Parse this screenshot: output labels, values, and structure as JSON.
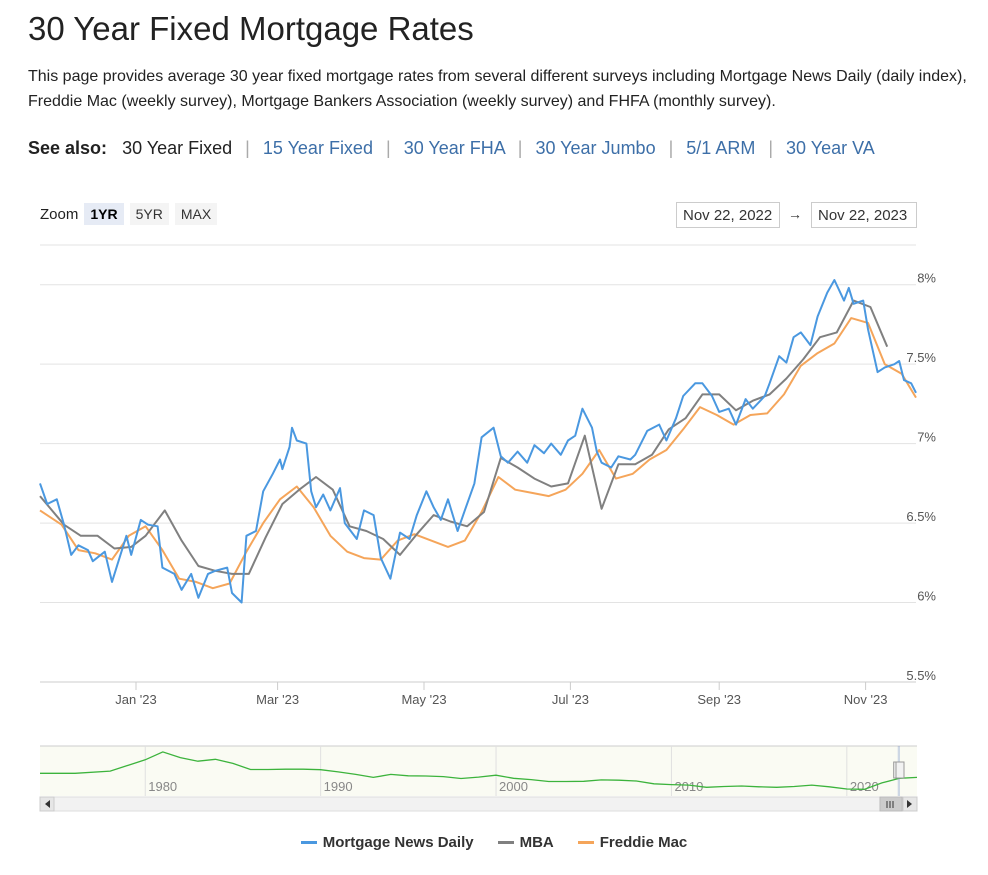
{
  "page": {
    "title": "30 Year Fixed Mortgage Rates",
    "description": "This page provides average 30 year fixed mortgage rates from several different surveys including Mortgage News Daily (daily index), Freddie Mac (weekly survey), Mortgage Bankers Association (weekly survey) and FHFA (monthly survey).",
    "see_also_label": "See also:",
    "see_also": [
      {
        "label": "30 Year Fixed",
        "current": true
      },
      {
        "label": "15 Year Fixed",
        "current": false
      },
      {
        "label": "30 Year FHA",
        "current": false
      },
      {
        "label": "30 Year Jumbo",
        "current": false
      },
      {
        "label": "5/1 ARM",
        "current": false
      },
      {
        "label": "30 Year VA",
        "current": false
      }
    ]
  },
  "controls": {
    "zoom_label": "Zoom",
    "zoom_options": [
      "1YR",
      "5YR",
      "MAX"
    ],
    "zoom_selected": "1YR",
    "range_from": "Nov 22, 2022",
    "range_arrow": "→",
    "range_to": "Nov 22, 2023"
  },
  "colors": {
    "mnd": "#4a98e0",
    "mba": "#808080",
    "freddie": "#f5a55a",
    "navigator": "#3cb33c",
    "grid": "#e3e3e3"
  },
  "chart_data": {
    "type": "line",
    "title": "",
    "xlabel": "",
    "ylabel": "",
    "x_range": [
      "2022-11-22",
      "2023-11-22"
    ],
    "ylim": [
      5.5,
      8.25
    ],
    "y_ticks": [
      5.5,
      6,
      6.5,
      7,
      7.5,
      8
    ],
    "y_tick_labels": [
      "5.5%",
      "6%",
      "6.5%",
      "7%",
      "7.5%",
      "8%"
    ],
    "x_ticks": [
      {
        "date": "2023-01-01",
        "label": "Jan '23"
      },
      {
        "date": "2023-03-01",
        "label": "Mar '23"
      },
      {
        "date": "2023-05-01",
        "label": "May '23"
      },
      {
        "date": "2023-07-01",
        "label": "Jul '23"
      },
      {
        "date": "2023-09-01",
        "label": "Sep '23"
      },
      {
        "date": "2023-11-01",
        "label": "Nov '23"
      }
    ],
    "legend_position": "bottom-center",
    "grid": true,
    "series": [
      {
        "name": "Mortgage News Daily",
        "points": [
          [
            "2022-11-22",
            6.75
          ],
          [
            "2022-11-25",
            6.62
          ],
          [
            "2022-11-29",
            6.65
          ],
          [
            "2022-12-02",
            6.49
          ],
          [
            "2022-12-05",
            6.3
          ],
          [
            "2022-12-08",
            6.36
          ],
          [
            "2022-12-12",
            6.33
          ],
          [
            "2022-12-14",
            6.26
          ],
          [
            "2022-12-19",
            6.32
          ],
          [
            "2022-12-22",
            6.13
          ],
          [
            "2022-12-28",
            6.42
          ],
          [
            "2022-12-30",
            6.3
          ],
          [
            "2023-01-03",
            6.52
          ],
          [
            "2023-01-06",
            6.49
          ],
          [
            "2023-01-10",
            6.48
          ],
          [
            "2023-01-12",
            6.22
          ],
          [
            "2023-01-17",
            6.18
          ],
          [
            "2023-01-20",
            6.08
          ],
          [
            "2023-01-24",
            6.18
          ],
          [
            "2023-01-27",
            6.03
          ],
          [
            "2023-01-31",
            6.18
          ],
          [
            "2023-02-03",
            6.2
          ],
          [
            "2023-02-08",
            6.22
          ],
          [
            "2023-02-10",
            6.06
          ],
          [
            "2023-02-14",
            6.0
          ],
          [
            "2023-02-16",
            6.42
          ],
          [
            "2023-02-20",
            6.45
          ],
          [
            "2023-02-23",
            6.7
          ],
          [
            "2023-02-27",
            6.81
          ],
          [
            "2023-03-02",
            6.9
          ],
          [
            "2023-03-03",
            6.84
          ],
          [
            "2023-03-06",
            6.98
          ],
          [
            "2023-03-07",
            7.1
          ],
          [
            "2023-03-09",
            7.02
          ],
          [
            "2023-03-13",
            7.0
          ],
          [
            "2023-03-15",
            6.7
          ],
          [
            "2023-03-17",
            6.6
          ],
          [
            "2023-03-20",
            6.68
          ],
          [
            "2023-03-23",
            6.58
          ],
          [
            "2023-03-27",
            6.72
          ],
          [
            "2023-03-29",
            6.5
          ],
          [
            "2023-04-03",
            6.4
          ],
          [
            "2023-04-06",
            6.58
          ],
          [
            "2023-04-10",
            6.55
          ],
          [
            "2023-04-13",
            6.28
          ],
          [
            "2023-04-17",
            6.15
          ],
          [
            "2023-04-21",
            6.44
          ],
          [
            "2023-04-25",
            6.4
          ],
          [
            "2023-04-28",
            6.55
          ],
          [
            "2023-05-02",
            6.7
          ],
          [
            "2023-05-05",
            6.6
          ],
          [
            "2023-05-08",
            6.52
          ],
          [
            "2023-05-11",
            6.65
          ],
          [
            "2023-05-15",
            6.45
          ],
          [
            "2023-05-18",
            6.58
          ],
          [
            "2023-05-22",
            6.75
          ],
          [
            "2023-05-25",
            7.04
          ],
          [
            "2023-05-30",
            7.1
          ],
          [
            "2023-06-02",
            6.92
          ],
          [
            "2023-06-05",
            6.88
          ],
          [
            "2023-06-09",
            6.95
          ],
          [
            "2023-06-13",
            6.88
          ],
          [
            "2023-06-16",
            6.99
          ],
          [
            "2023-06-20",
            6.94
          ],
          [
            "2023-06-23",
            7.0
          ],
          [
            "2023-06-27",
            6.93
          ],
          [
            "2023-06-30",
            7.02
          ],
          [
            "2023-07-03",
            7.05
          ],
          [
            "2023-07-06",
            7.22
          ],
          [
            "2023-07-10",
            7.1
          ],
          [
            "2023-07-12",
            6.95
          ],
          [
            "2023-07-14",
            6.88
          ],
          [
            "2023-07-18",
            6.85
          ],
          [
            "2023-07-21",
            6.92
          ],
          [
            "2023-07-26",
            6.9
          ],
          [
            "2023-07-28",
            6.93
          ],
          [
            "2023-08-02",
            7.08
          ],
          [
            "2023-08-07",
            7.12
          ],
          [
            "2023-08-10",
            7.02
          ],
          [
            "2023-08-14",
            7.16
          ],
          [
            "2023-08-17",
            7.3
          ],
          [
            "2023-08-22",
            7.38
          ],
          [
            "2023-08-25",
            7.38
          ],
          [
            "2023-08-29",
            7.3
          ],
          [
            "2023-09-01",
            7.2
          ],
          [
            "2023-09-05",
            7.22
          ],
          [
            "2023-09-08",
            7.12
          ],
          [
            "2023-09-12",
            7.28
          ],
          [
            "2023-09-15",
            7.22
          ],
          [
            "2023-09-20",
            7.3
          ],
          [
            "2023-09-22",
            7.38
          ],
          [
            "2023-09-26",
            7.55
          ],
          [
            "2023-09-29",
            7.51
          ],
          [
            "2023-10-02",
            7.67
          ],
          [
            "2023-10-05",
            7.7
          ],
          [
            "2023-10-09",
            7.62
          ],
          [
            "2023-10-12",
            7.8
          ],
          [
            "2023-10-16",
            7.95
          ],
          [
            "2023-10-19",
            8.03
          ],
          [
            "2023-10-23",
            7.9
          ],
          [
            "2023-10-25",
            7.98
          ],
          [
            "2023-10-27",
            7.88
          ],
          [
            "2023-10-31",
            7.9
          ],
          [
            "2023-11-02",
            7.72
          ],
          [
            "2023-11-06",
            7.45
          ],
          [
            "2023-11-09",
            7.48
          ],
          [
            "2023-11-13",
            7.5
          ],
          [
            "2023-11-15",
            7.52
          ],
          [
            "2023-11-17",
            7.4
          ],
          [
            "2023-11-20",
            7.38
          ],
          [
            "2023-11-22",
            7.32
          ]
        ]
      },
      {
        "name": "MBA",
        "points": [
          [
            "2022-11-22",
            6.67
          ],
          [
            "2022-12-02",
            6.49
          ],
          [
            "2022-12-09",
            6.42
          ],
          [
            "2022-12-16",
            6.42
          ],
          [
            "2022-12-23",
            6.34
          ],
          [
            "2022-12-30",
            6.35
          ],
          [
            "2023-01-05",
            6.42
          ],
          [
            "2023-01-13",
            6.58
          ],
          [
            "2023-01-20",
            6.39
          ],
          [
            "2023-01-27",
            6.23
          ],
          [
            "2023-02-03",
            6.2
          ],
          [
            "2023-02-10",
            6.18
          ],
          [
            "2023-02-17",
            6.18
          ],
          [
            "2023-02-24",
            6.41
          ],
          [
            "2023-03-03",
            6.62
          ],
          [
            "2023-03-10",
            6.71
          ],
          [
            "2023-03-17",
            6.79
          ],
          [
            "2023-03-24",
            6.71
          ],
          [
            "2023-03-31",
            6.48
          ],
          [
            "2023-04-07",
            6.45
          ],
          [
            "2023-04-14",
            6.4
          ],
          [
            "2023-04-21",
            6.3
          ],
          [
            "2023-04-28",
            6.43
          ],
          [
            "2023-05-05",
            6.55
          ],
          [
            "2023-05-12",
            6.51
          ],
          [
            "2023-05-19",
            6.48
          ],
          [
            "2023-05-26",
            6.57
          ],
          [
            "2023-06-02",
            6.91
          ],
          [
            "2023-06-09",
            6.85
          ],
          [
            "2023-06-16",
            6.78
          ],
          [
            "2023-06-23",
            6.73
          ],
          [
            "2023-06-30",
            6.75
          ],
          [
            "2023-07-07",
            7.05
          ],
          [
            "2023-07-14",
            6.59
          ],
          [
            "2023-07-21",
            6.87
          ],
          [
            "2023-07-28",
            6.87
          ],
          [
            "2023-08-04",
            6.93
          ],
          [
            "2023-08-11",
            7.09
          ],
          [
            "2023-08-18",
            7.16
          ],
          [
            "2023-08-25",
            7.31
          ],
          [
            "2023-09-01",
            7.31
          ],
          [
            "2023-09-08",
            7.21
          ],
          [
            "2023-09-15",
            7.27
          ],
          [
            "2023-09-22",
            7.31
          ],
          [
            "2023-09-29",
            7.41
          ],
          [
            "2023-10-06",
            7.53
          ],
          [
            "2023-10-13",
            7.67
          ],
          [
            "2023-10-20",
            7.7
          ],
          [
            "2023-10-27",
            7.9
          ],
          [
            "2023-11-03",
            7.86
          ],
          [
            "2023-11-10",
            7.61
          ]
        ]
      },
      {
        "name": "Freddie Mac",
        "points": [
          [
            "2022-11-22",
            6.58
          ],
          [
            "2022-12-01",
            6.49
          ],
          [
            "2022-12-08",
            6.33
          ],
          [
            "2022-12-15",
            6.31
          ],
          [
            "2022-12-22",
            6.27
          ],
          [
            "2022-12-29",
            6.42
          ],
          [
            "2023-01-05",
            6.48
          ],
          [
            "2023-01-12",
            6.33
          ],
          [
            "2023-01-19",
            6.15
          ],
          [
            "2023-01-26",
            6.13
          ],
          [
            "2023-02-02",
            6.09
          ],
          [
            "2023-02-09",
            6.12
          ],
          [
            "2023-02-16",
            6.32
          ],
          [
            "2023-02-23",
            6.5
          ],
          [
            "2023-03-02",
            6.65
          ],
          [
            "2023-03-09",
            6.73
          ],
          [
            "2023-03-16",
            6.6
          ],
          [
            "2023-03-23",
            6.42
          ],
          [
            "2023-03-30",
            6.32
          ],
          [
            "2023-04-06",
            6.28
          ],
          [
            "2023-04-13",
            6.27
          ],
          [
            "2023-04-20",
            6.39
          ],
          [
            "2023-04-27",
            6.43
          ],
          [
            "2023-05-04",
            6.39
          ],
          [
            "2023-05-11",
            6.35
          ],
          [
            "2023-05-18",
            6.39
          ],
          [
            "2023-05-25",
            6.57
          ],
          [
            "2023-06-01",
            6.79
          ],
          [
            "2023-06-08",
            6.71
          ],
          [
            "2023-06-15",
            6.69
          ],
          [
            "2023-06-22",
            6.67
          ],
          [
            "2023-06-29",
            6.71
          ],
          [
            "2023-07-06",
            6.81
          ],
          [
            "2023-07-13",
            6.96
          ],
          [
            "2023-07-20",
            6.78
          ],
          [
            "2023-07-27",
            6.81
          ],
          [
            "2023-08-03",
            6.9
          ],
          [
            "2023-08-10",
            6.96
          ],
          [
            "2023-08-17",
            7.09
          ],
          [
            "2023-08-24",
            7.23
          ],
          [
            "2023-08-31",
            7.18
          ],
          [
            "2023-09-07",
            7.12
          ],
          [
            "2023-09-14",
            7.18
          ],
          [
            "2023-09-21",
            7.19
          ],
          [
            "2023-09-28",
            7.31
          ],
          [
            "2023-10-05",
            7.49
          ],
          [
            "2023-10-12",
            7.57
          ],
          [
            "2023-10-19",
            7.63
          ],
          [
            "2023-10-26",
            7.79
          ],
          [
            "2023-11-02",
            7.76
          ],
          [
            "2023-11-09",
            7.5
          ],
          [
            "2023-11-16",
            7.44
          ],
          [
            "2023-11-22",
            7.29
          ]
        ]
      }
    ],
    "navigator": {
      "x_range": [
        1974,
        2024
      ],
      "x_ticks": [
        1980,
        1990,
        2000,
        2010,
        2020
      ],
      "points": [
        [
          1974,
          8.8
        ],
        [
          1976,
          8.8
        ],
        [
          1978,
          9.6
        ],
        [
          1980,
          13.7
        ],
        [
          1981,
          16.6
        ],
        [
          1982,
          14.5
        ],
        [
          1983,
          13.2
        ],
        [
          1984,
          13.9
        ],
        [
          1985,
          12.4
        ],
        [
          1986,
          10.2
        ],
        [
          1987,
          10.2
        ],
        [
          1988,
          10.3
        ],
        [
          1989,
          10.3
        ],
        [
          1990,
          10.1
        ],
        [
          1991,
          9.3
        ],
        [
          1992,
          8.4
        ],
        [
          1993,
          7.3
        ],
        [
          1994,
          8.4
        ],
        [
          1995,
          7.9
        ],
        [
          1996,
          7.8
        ],
        [
          1997,
          7.6
        ],
        [
          1998,
          6.9
        ],
        [
          1999,
          7.4
        ],
        [
          2000,
          8.1
        ],
        [
          2001,
          7.0
        ],
        [
          2002,
          6.5
        ],
        [
          2003,
          5.8
        ],
        [
          2004,
          5.8
        ],
        [
          2005,
          5.9
        ],
        [
          2006,
          6.4
        ],
        [
          2007,
          6.3
        ],
        [
          2008,
          6.0
        ],
        [
          2009,
          5.0
        ],
        [
          2010,
          4.7
        ],
        [
          2011,
          4.5
        ],
        [
          2012,
          3.7
        ],
        [
          2013,
          4.0
        ],
        [
          2014,
          4.2
        ],
        [
          2015,
          3.9
        ],
        [
          2016,
          3.7
        ],
        [
          2017,
          4.0
        ],
        [
          2018,
          4.5
        ],
        [
          2019,
          3.9
        ],
        [
          2020,
          3.1
        ],
        [
          2021,
          3.0
        ],
        [
          2022,
          5.3
        ],
        [
          2023,
          7.0
        ],
        [
          2024,
          7.3
        ]
      ]
    }
  },
  "legend": [
    {
      "name": "Mortgage News Daily",
      "color": "#4a98e0"
    },
    {
      "name": "MBA",
      "color": "#808080"
    },
    {
      "name": "Freddie Mac",
      "color": "#f5a55a"
    }
  ]
}
